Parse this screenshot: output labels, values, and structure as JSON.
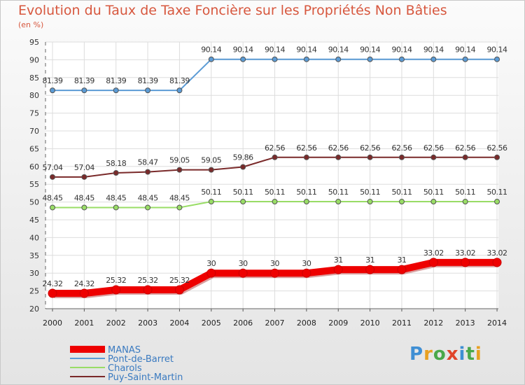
{
  "chart_data": {
    "type": "line",
    "title": "Evolution du Taux de Taxe Foncière sur les Propriétés Non Bâties",
    "ylabel": "(en %)",
    "xlabel": "",
    "ylim": [
      20,
      95
    ],
    "yticks": [
      20,
      25,
      30,
      35,
      40,
      45,
      50,
      55,
      60,
      65,
      70,
      75,
      80,
      85,
      90,
      95
    ],
    "categories": [
      "2000",
      "2001",
      "2002",
      "2003",
      "2004",
      "2005",
      "2006",
      "2007",
      "2008",
      "2009",
      "2010",
      "2011",
      "2012",
      "2013",
      "2014"
    ],
    "series": [
      {
        "name": "MANAS",
        "color": "#ee0000",
        "labels": [
          "24.32",
          "24.32",
          "25.32",
          "25.32",
          "25.32",
          "30",
          "30",
          "30",
          "30",
          "31",
          "31",
          "31",
          "33.02",
          "33.02",
          "33.02"
        ],
        "values": [
          24.32,
          24.32,
          25.32,
          25.32,
          25.32,
          30,
          30,
          30,
          30,
          31,
          31,
          31,
          33.02,
          33.02,
          33.02
        ]
      },
      {
        "name": "Pont-de-Barret",
        "color": "#5b9bd5",
        "labels": [
          "81.39",
          "81.39",
          "81.39",
          "81.39",
          "81.39",
          "90.14",
          "90.14",
          "90.14",
          "90.14",
          "90.14",
          "90.14",
          "90.14",
          "90.14",
          "90.14",
          "90.14"
        ],
        "values": [
          81.39,
          81.39,
          81.39,
          81.39,
          81.39,
          90.14,
          90.14,
          90.14,
          90.14,
          90.14,
          90.14,
          90.14,
          90.14,
          90.14,
          90.14
        ]
      },
      {
        "name": "Charols",
        "color": "#99dd66",
        "labels": [
          "48.45",
          "48.45",
          "48.45",
          "48.45",
          "48.45",
          "50.11",
          "50.11",
          "50.11",
          "50.11",
          "50.11",
          "50.11",
          "50.11",
          "50.11",
          "50.11",
          "50.11"
        ],
        "values": [
          48.45,
          48.45,
          48.45,
          48.45,
          48.45,
          50.11,
          50.11,
          50.11,
          50.11,
          50.11,
          50.11,
          50.11,
          50.11,
          50.11,
          50.11
        ]
      },
      {
        "name": "Puy-Saint-Martin",
        "color": "#7a2a2a",
        "labels": [
          "57.04",
          "57.04",
          "58.18",
          "58.47",
          "59.05",
          "59.05",
          "59.86",
          "62.56",
          "62.56",
          "62.56",
          "62.56",
          "62.56",
          "62.56",
          "62.56",
          "62.56"
        ],
        "values": [
          57.04,
          57.04,
          58.18,
          58.47,
          59.05,
          59.05,
          59.86,
          62.56,
          62.56,
          62.56,
          62.56,
          62.56,
          62.56,
          62.56,
          62.56
        ]
      }
    ]
  },
  "logo": {
    "text": "Proxiti",
    "letters": [
      "P",
      "r",
      "o",
      "x",
      "i",
      "t",
      "i"
    ]
  }
}
